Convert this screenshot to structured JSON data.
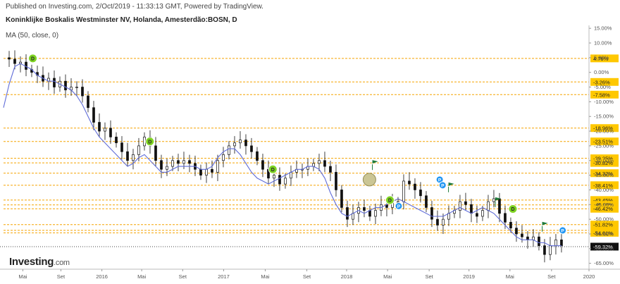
{
  "header": {
    "published": "Published on Investing.com, 2/Oct/2019 - 11:33:13 GMT, Powered by TradingView.",
    "title": "Koninklijke Boskalis Westminster NV, Holanda, Amesterdão:BOSN, D",
    "indicator": "MA (50, close, 0)"
  },
  "logo": {
    "word": "Investing",
    "domain": ".com"
  },
  "colors": {
    "level_line": "#f5a300",
    "level_box": "#ffc800",
    "ma_line": "#5f6cd8",
    "candle": "#111111",
    "dividend": "#7ed321",
    "pin": "#2196f3",
    "flag": "#1e7b3a"
  },
  "chart_data": {
    "type": "line",
    "ylabel": "",
    "ylim": [
      -67,
      16
    ],
    "y_ticks": [
      "15.00%",
      "10.00%",
      "5.00%",
      "0.00%",
      "-5.00%",
      "-10.00%",
      "-15.00%",
      "-20.00%",
      "-25.00%",
      "-30.00%",
      "-35.00%",
      "-40.00%",
      "-45.00%",
      "-50.00%",
      "-55.00%",
      "-60.00%",
      "-65.00%"
    ],
    "x_ticks": [
      "Mai",
      "Set",
      "2016",
      "Mai",
      "Set",
      "2017",
      "Mai",
      "Set",
      "2018",
      "Mai",
      "Set",
      "2019",
      "Mai",
      "Set",
      "2020"
    ],
    "levels": [
      "4.76%",
      "-3.26%",
      "-7.58%",
      "-18.96%",
      "-23.51%",
      "-29.25%",
      "-30.82%",
      "-34.32%",
      "-38.41%",
      "-43.45%",
      "-45.12%",
      "-46.42%",
      "-51.82%",
      "-53.78%",
      "-54.61%",
      "-59.32%"
    ],
    "level_values": [
      4.76,
      -3.26,
      -7.58,
      -18.96,
      -23.51,
      -29.25,
      -30.82,
      -34.32,
      -38.41,
      -43.45,
      -45.12,
      -46.42,
      -51.82,
      -53.78,
      -54.61,
      -59.32
    ],
    "last_value": "-59.32%",
    "series": [
      {
        "values": [
          5,
          4.5,
          3,
          3.5,
          1,
          0,
          -1,
          -3,
          -2,
          -5,
          -3,
          -6,
          -5,
          -5,
          -8,
          -12,
          -17,
          -20,
          -19,
          -22,
          -24,
          -27,
          -30,
          -28,
          -25,
          -22,
          -25,
          -30,
          -33,
          -32,
          -30,
          -31,
          -30,
          -31,
          -33,
          -35,
          -33,
          -34,
          -30,
          -28,
          -25,
          -24,
          -23,
          -25,
          -27,
          -30,
          -33,
          -36,
          -35,
          -38,
          -36,
          -34,
          -33,
          -33,
          -32,
          -31,
          -30,
          -32,
          -34,
          -40,
          -46,
          -50,
          -48,
          -46,
          -47,
          -49,
          -47,
          -45,
          -46,
          -44,
          -44,
          -37,
          -38,
          -40,
          -42,
          -46,
          -50,
          -52,
          -50,
          -48,
          -47,
          -44,
          -45,
          -48,
          -49,
          -47,
          -44,
          -43,
          -48,
          -51,
          -53,
          -55,
          -56,
          -57,
          -56,
          -59,
          -62,
          -59,
          -57,
          -59
        ]
      },
      {
        "name": "MA (50, close, 0)",
        "values": [
          -12,
          -4,
          2,
          3,
          2,
          1,
          -1,
          -2,
          -3,
          -3,
          -4,
          -5,
          -6,
          -8,
          -11,
          -15,
          -19,
          -22,
          -24,
          -26,
          -28,
          -30,
          -32,
          -31,
          -29,
          -28,
          -30,
          -32,
          -34,
          -34,
          -33,
          -32,
          -32,
          -32,
          -32,
          -33,
          -33,
          -32,
          -29,
          -27,
          -26,
          -26,
          -28,
          -31,
          -34,
          -36,
          -37,
          -38,
          -37,
          -36,
          -35,
          -34,
          -33,
          -33,
          -32,
          -32,
          -33,
          -36,
          -41,
          -45,
          -48,
          -49,
          -48,
          -47,
          -48,
          -47,
          -46,
          -46,
          -45,
          -44,
          -43,
          -44,
          -45,
          -46,
          -47,
          -48,
          -49,
          -49,
          -49,
          -48,
          -47,
          -46,
          -47,
          -48,
          -47,
          -46,
          -47,
          -48,
          -50,
          -52,
          -54,
          -56,
          -57,
          -57,
          -57,
          -58,
          -58,
          -59,
          -59,
          -59
        ]
      }
    ],
    "markers": [
      {
        "type": "D",
        "x": 0.05,
        "y": 4.76
      },
      {
        "type": "D",
        "x": 0.25,
        "y": -23.51
      },
      {
        "type": "D",
        "x": 0.46,
        "y": -33.0
      },
      {
        "type": "D",
        "x": 0.66,
        "y": -43.5
      },
      {
        "type": "D",
        "x": 0.87,
        "y": -46.5
      },
      {
        "type": "P",
        "x": 0.675,
        "y": -45.5
      },
      {
        "type": "P",
        "x": 0.745,
        "y": -36.5
      },
      {
        "type": "P",
        "x": 0.75,
        "y": -38.41
      },
      {
        "type": "P",
        "x": 0.955,
        "y": -53.78
      }
    ],
    "flags": [
      {
        "x": 0.63,
        "y": -30.82
      },
      {
        "x": 0.76,
        "y": -38.41
      },
      {
        "x": 0.84,
        "y": -43.45
      },
      {
        "x": 0.92,
        "y": -51.82
      }
    ]
  }
}
